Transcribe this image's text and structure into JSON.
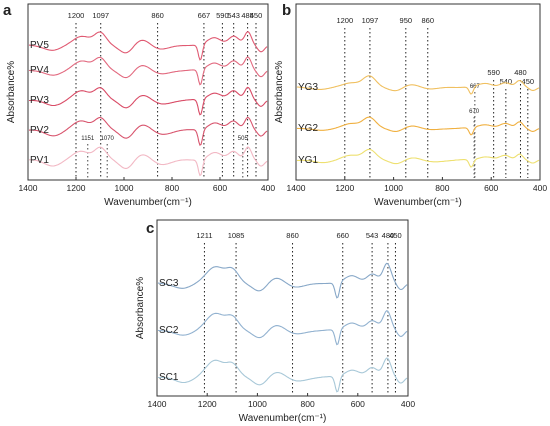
{
  "chart_data": [
    {
      "type": "line",
      "panel_label": "a",
      "xlabel": "Wavenumber(cm⁻¹)",
      "ylabel": "Absorbance%",
      "xlim": [
        1400,
        400
      ],
      "x_reversed": true,
      "x_ticks": [
        "1400",
        "1200",
        "1000",
        "800",
        "600",
        "400"
      ],
      "grid": false,
      "color": "#e0607a",
      "peak_lines": [
        {
          "x": 1200,
          "label": "1200"
        },
        {
          "x": 1097,
          "label": "1097"
        },
        {
          "x": 860,
          "label": "860"
        },
        {
          "x": 667,
          "label": "667"
        },
        {
          "x": 590,
          "label": "590"
        },
        {
          "x": 543,
          "label": "543"
        },
        {
          "x": 485,
          "label": "485"
        },
        {
          "x": 450,
          "label": "450"
        }
      ],
      "inner_annotations": [
        {
          "x": 1151,
          "label": "1151"
        },
        {
          "x": 1070,
          "label": "1070"
        },
        {
          "x": 505,
          "label": "505"
        }
      ],
      "series": [
        {
          "name": "PV5",
          "color": "#e05a72"
        },
        {
          "name": "PV4",
          "color": "#e2697f"
        },
        {
          "name": "PV3",
          "color": "#d94b66"
        },
        {
          "name": "PV2",
          "color": "#d8546d"
        },
        {
          "name": "PV1",
          "color": "#f2b8c4"
        }
      ]
    },
    {
      "type": "line",
      "panel_label": "b",
      "xlabel": "Wavenumber(cm⁻¹)",
      "ylabel": "Absorbance%",
      "xlim": [
        1400,
        400
      ],
      "x_reversed": true,
      "x_ticks": [
        "1400",
        "1200",
        "1000",
        "800",
        "600",
        "400"
      ],
      "grid": false,
      "peak_lines": [
        {
          "x": 1200,
          "label": "1200"
        },
        {
          "x": 1097,
          "label": "1097"
        },
        {
          "x": 950,
          "label": "950"
        },
        {
          "x": 860,
          "label": "860"
        },
        {
          "x": 590,
          "label": "590"
        },
        {
          "x": 540,
          "label": "540"
        },
        {
          "x": 480,
          "label": "480"
        },
        {
          "x": 450,
          "label": "450"
        }
      ],
      "inner_annotations": [
        {
          "x": 667,
          "label": "667"
        },
        {
          "x": 670,
          "label": "670"
        }
      ],
      "series": [
        {
          "name": "YG3",
          "color": "#f0c060"
        },
        {
          "name": "YG2",
          "color": "#f0b040"
        },
        {
          "name": "YG1",
          "color": "#eee070"
        }
      ]
    },
    {
      "type": "line",
      "panel_label": "c",
      "xlabel": "Wavenumber(cm⁻¹)",
      "ylabel": "Absorbance%",
      "xlim": [
        1400,
        400
      ],
      "x_reversed": true,
      "x_ticks": [
        "1400",
        "1200",
        "1000",
        "800",
        "600",
        "400"
      ],
      "grid": false,
      "peak_lines": [
        {
          "x": 1211,
          "label": "1211"
        },
        {
          "x": 1085,
          "label": "1085"
        },
        {
          "x": 860,
          "label": "860"
        },
        {
          "x": 660,
          "label": "660"
        },
        {
          "x": 543,
          "label": "543"
        },
        {
          "x": 480,
          "label": "480"
        },
        {
          "x": 450,
          "label": "450"
        }
      ],
      "series": [
        {
          "name": "SC3",
          "color": "#88a8c8"
        },
        {
          "name": "SC2",
          "color": "#92b2d0"
        },
        {
          "name": "SC1",
          "color": "#a8c8d8"
        }
      ]
    }
  ]
}
